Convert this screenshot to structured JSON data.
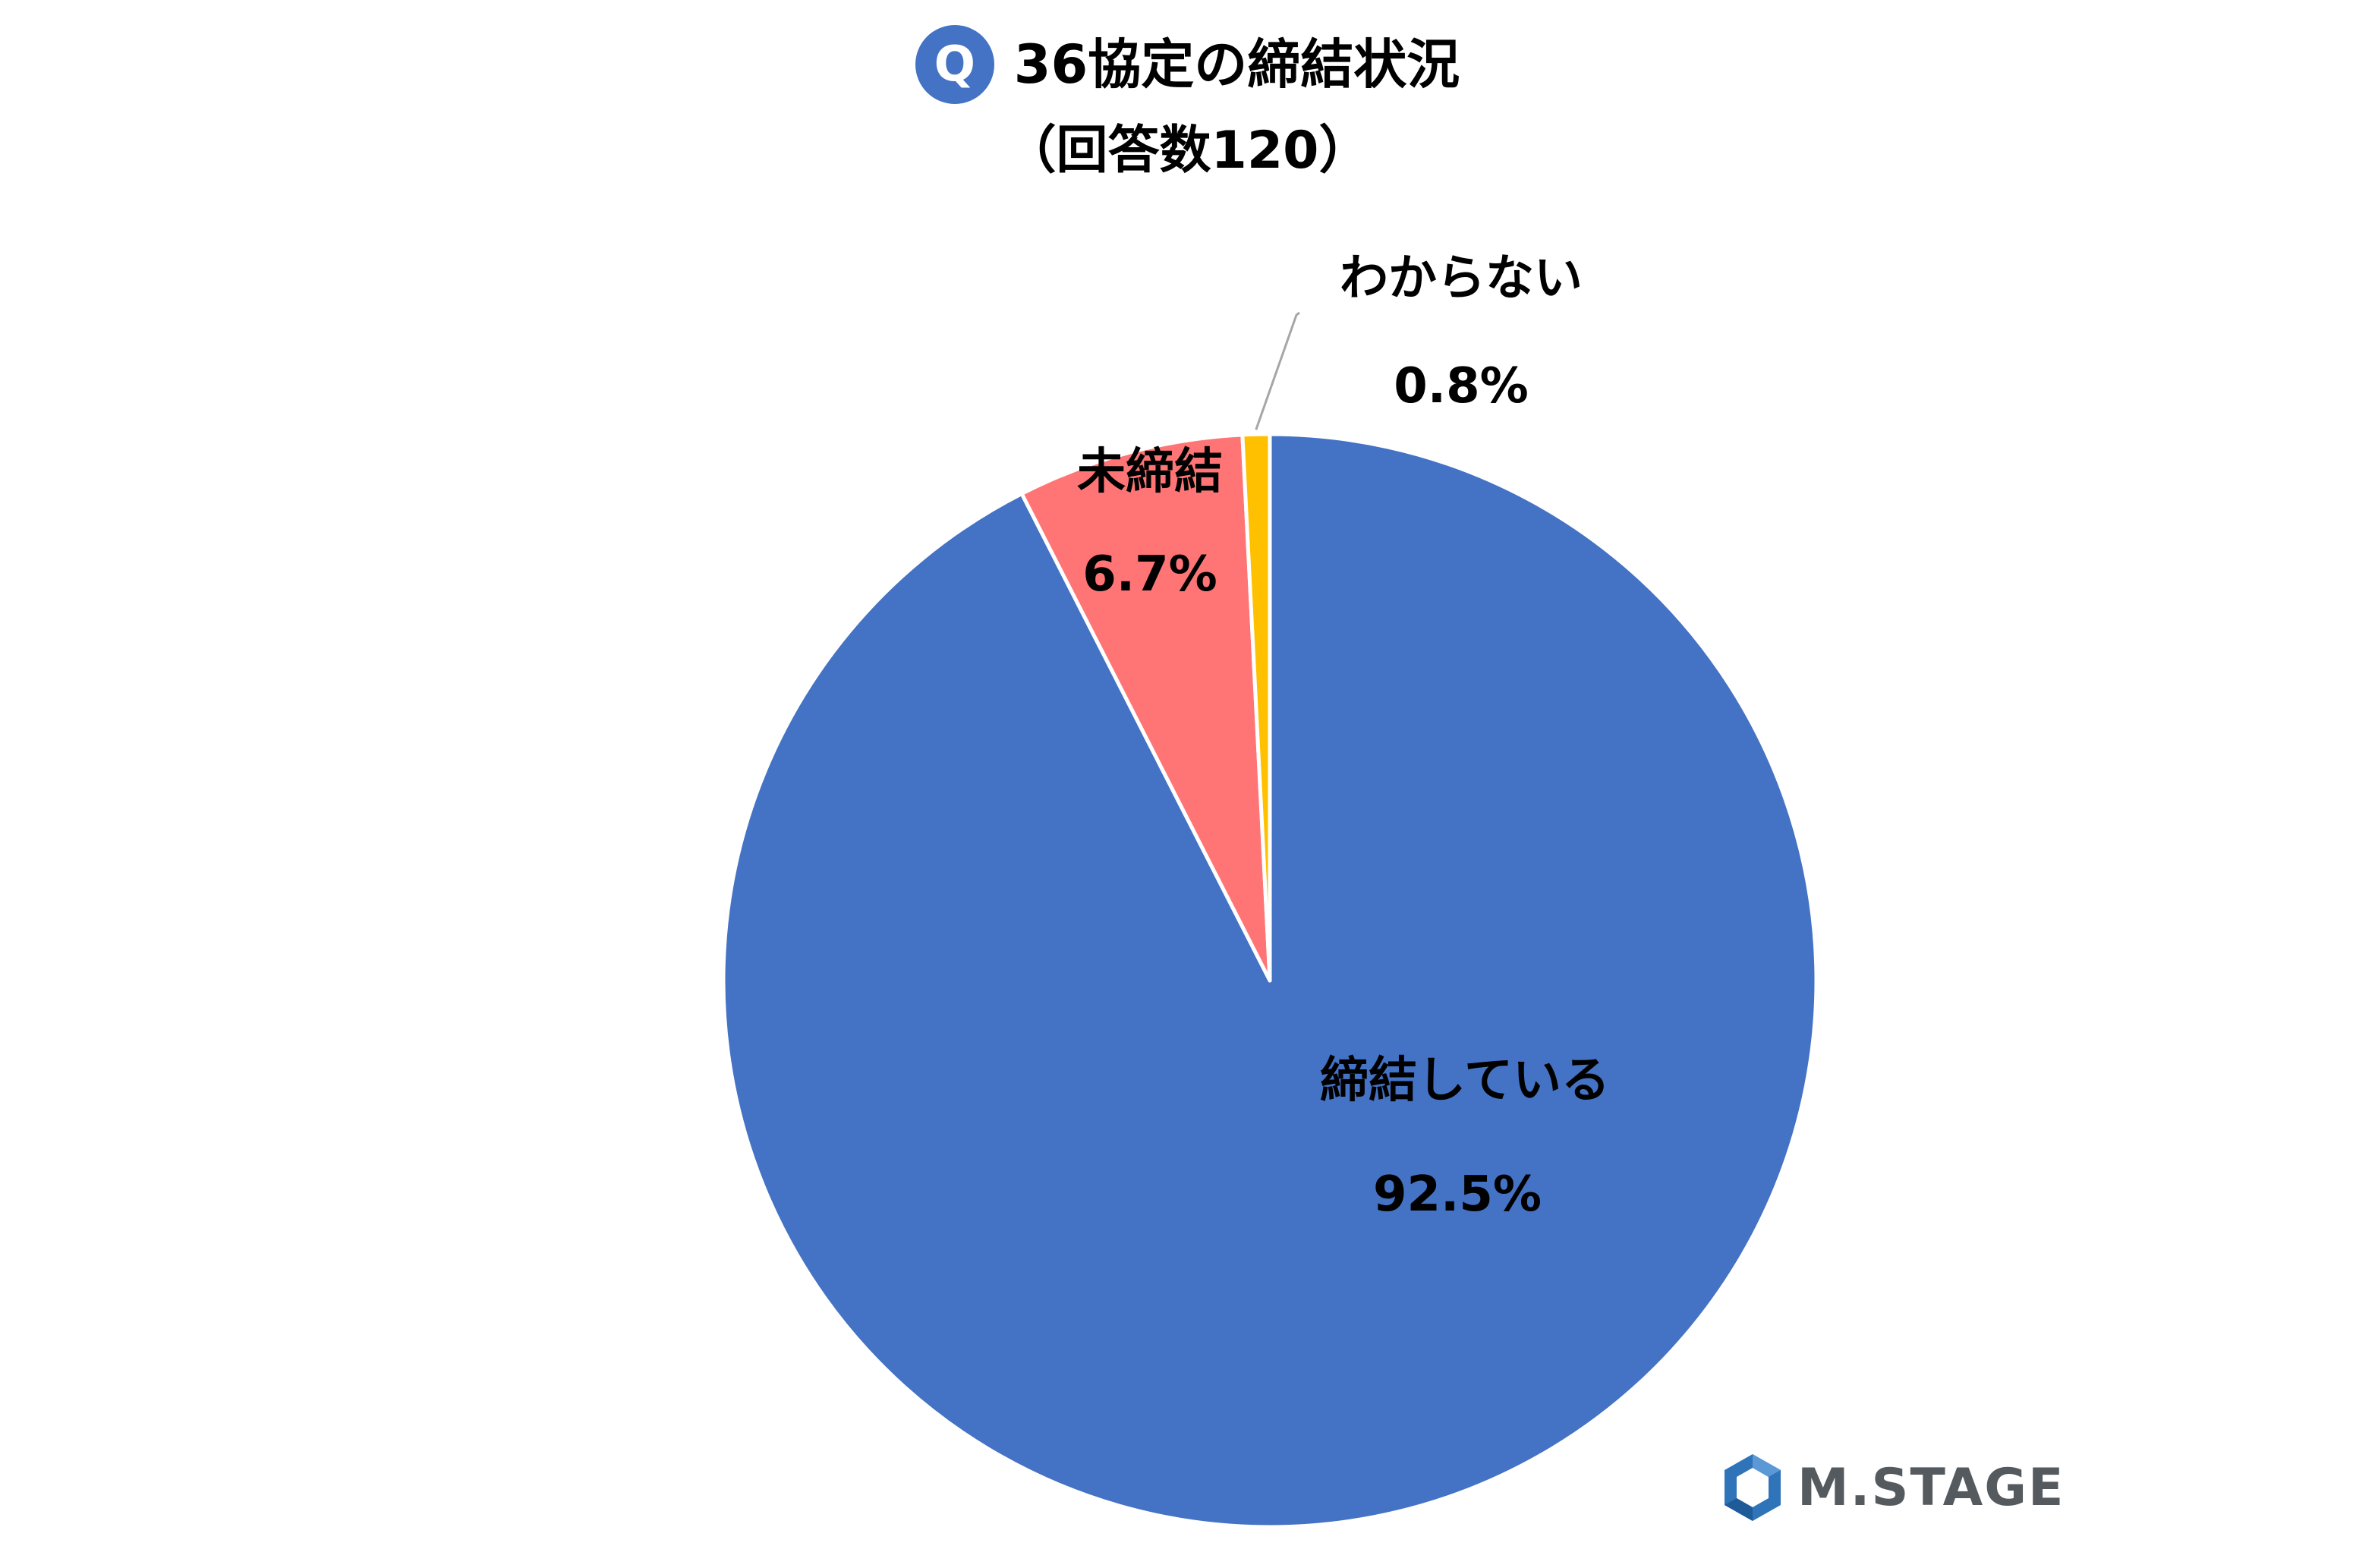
{
  "header": {
    "badge": "Q",
    "title": "36協定の締結状況",
    "subtitle": "（回答数120）"
  },
  "chart_data": {
    "type": "pie",
    "title": "36協定の締結状況",
    "subtitle": "（回答数120）",
    "slices": [
      {
        "label": "締結している",
        "value": 92.5,
        "value_label": "92.5%",
        "color": "#4472c4"
      },
      {
        "label": "未締結",
        "value": 6.7,
        "value_label": "6.7%",
        "color": "#ff7575"
      },
      {
        "label": "わからない",
        "value": 0.8,
        "value_label": "0.8%",
        "color": "#ffc000"
      }
    ],
    "start": "12 o'clock",
    "direction": "clockwise"
  },
  "logo": {
    "text": "M.STAGE",
    "colors": [
      "#2f73b8",
      "#555a5f"
    ]
  }
}
